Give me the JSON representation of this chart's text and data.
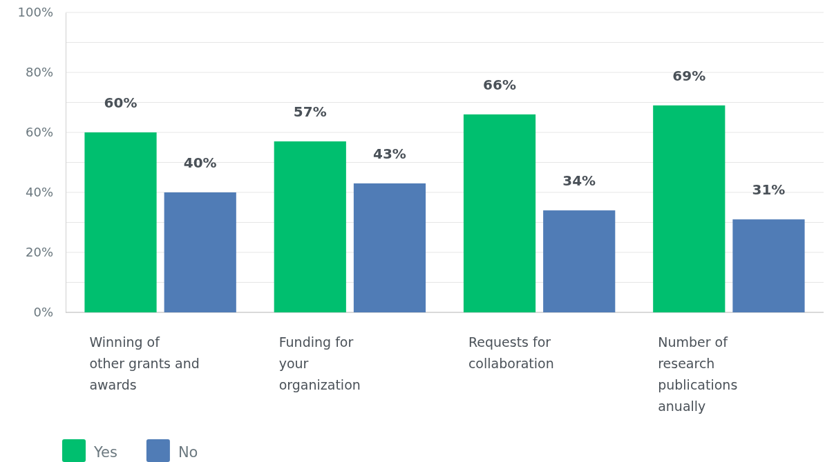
{
  "chart_data": {
    "type": "bar",
    "categories": [
      "Winning of\nother grants and\nawards",
      "Funding for\nyour\norganization",
      "Requests for\ncollaboration",
      "Number of\nresearch\npublications\nanually"
    ],
    "series": [
      {
        "name": "Yes",
        "color": "#00bf6f",
        "values": [
          60,
          57,
          66,
          69
        ],
        "value_labels": [
          "60%",
          "57%",
          "66%",
          "69%"
        ]
      },
      {
        "name": "No",
        "color": "#507cb6",
        "values": [
          40,
          43,
          34,
          31
        ],
        "value_labels": [
          "40%",
          "43%",
          "34%",
          "31%"
        ]
      }
    ],
    "ylim": [
      0,
      100
    ],
    "yticks": [
      {
        "value": 0,
        "label": "0%"
      },
      {
        "value": 10,
        "label": null
      },
      {
        "value": 20,
        "label": "20%"
      },
      {
        "value": 30,
        "label": null
      },
      {
        "value": 40,
        "label": "40%"
      },
      {
        "value": 50,
        "label": null
      },
      {
        "value": 60,
        "label": "60%"
      },
      {
        "value": 70,
        "label": null
      },
      {
        "value": 80,
        "label": "80%"
      },
      {
        "value": 90,
        "label": null
      },
      {
        "value": 100,
        "label": "100%"
      }
    ],
    "grid": "y",
    "legend": "bottom left"
  }
}
